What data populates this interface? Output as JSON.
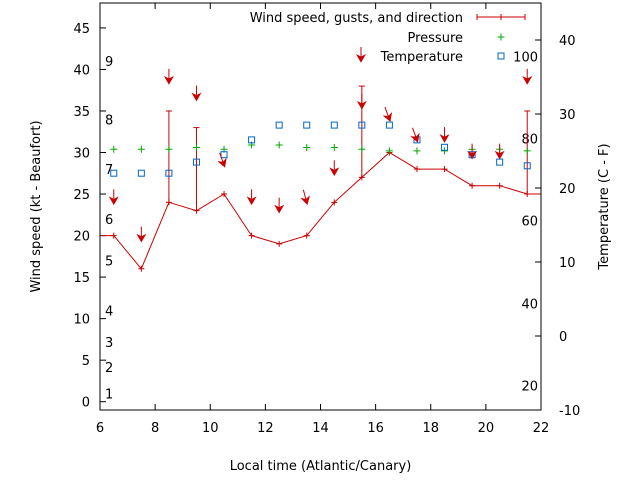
{
  "chart_data": {
    "type": "line",
    "title": "",
    "xlabel": "Local time (Atlantic/Canary)",
    "ylabel_left": "Wind speed (kt - Beaufort)",
    "ylabel_right": "Temperature (C - F)",
    "xlim": [
      6,
      22
    ],
    "ylim_left": [
      -1,
      48
    ],
    "ylim_right": [
      -10,
      45
    ],
    "x_ticks": [
      6,
      8,
      10,
      12,
      14,
      16,
      18,
      20,
      22
    ],
    "y_ticks_left": [
      0,
      5,
      10,
      15,
      20,
      25,
      30,
      35,
      40,
      45
    ],
    "y_ticks_right": [
      -10,
      0,
      10,
      20,
      30,
      40
    ],
    "beaufort_labels": [
      {
        "label": "1",
        "kt": 1
      },
      {
        "label": "2",
        "kt": 4.2
      },
      {
        "label": "3",
        "kt": 7.2
      },
      {
        "label": "4",
        "kt": 11
      },
      {
        "label": "5",
        "kt": 17
      },
      {
        "label": "6",
        "kt": 22
      },
      {
        "label": "7",
        "kt": 28
      },
      {
        "label": "8",
        "kt": 34
      },
      {
        "label": "9",
        "kt": 41
      }
    ],
    "fahrenheit_labels": [
      {
        "label": "20",
        "c": -6.7
      },
      {
        "label": "40",
        "c": 4.4
      },
      {
        "label": "60",
        "c": 15.6
      },
      {
        "label": "80",
        "c": 26.7
      },
      {
        "label": "100",
        "c": 37.8
      }
    ],
    "legend": {
      "position": "top-right",
      "entries": [
        "Wind speed, gusts, and direction",
        "Pressure",
        "Temperature"
      ]
    },
    "colors": {
      "wind": "#cc0000",
      "pressure": "#00aa00",
      "temperature": "#0066cc"
    },
    "wind": [
      {
        "x": 6.0,
        "speed": 20
      },
      {
        "x": 6.5,
        "speed": 20,
        "gust": 20,
        "dir": 0
      },
      {
        "x": 7.5,
        "speed": 16,
        "gust": 16,
        "dir": 0
      },
      {
        "x": 8.5,
        "speed": 24,
        "gust": 35,
        "dir": 0
      },
      {
        "x": 9.5,
        "speed": 23,
        "gust": 33,
        "dir": 0
      },
      {
        "x": 10.5,
        "speed": 25,
        "gust": 25,
        "dir": -20
      },
      {
        "x": 11.5,
        "speed": 20,
        "gust": 20,
        "dir": 0
      },
      {
        "x": 12.5,
        "speed": 19,
        "gust": 19,
        "dir": 0
      },
      {
        "x": 13.5,
        "speed": 20,
        "gust": 20,
        "dir": -15
      },
      {
        "x": 14.5,
        "speed": 24,
        "gust": 24,
        "dir": 0
      },
      {
        "x": 15.5,
        "speed": 27,
        "gust": 38,
        "dir": 0
      },
      {
        "x": 16.5,
        "speed": 30,
        "gust": 30,
        "dir": -20
      },
      {
        "x": 17.5,
        "speed": 28,
        "gust": 28,
        "dir": -20
      },
      {
        "x": 18.5,
        "speed": 28,
        "gust": 28,
        "dir": 0
      },
      {
        "x": 19.5,
        "speed": 26,
        "gust": 26,
        "dir": 0
      },
      {
        "x": 20.5,
        "speed": 26,
        "gust": 26,
        "dir": 0
      },
      {
        "x": 21.5,
        "speed": 25,
        "gust": 35,
        "dir": 0
      },
      {
        "x": 22.0,
        "speed": 25
      }
    ],
    "direction_arrow_kt": [
      {
        "x": 6.5,
        "kt": 24
      },
      {
        "x": 7.5,
        "kt": 19.5
      },
      {
        "x": 8.5,
        "kt": 38.5
      },
      {
        "x": 9.5,
        "kt": 36.5
      },
      {
        "x": 10.5,
        "kt": 28.5
      },
      {
        "x": 11.5,
        "kt": 24
      },
      {
        "x": 12.5,
        "kt": 23
      },
      {
        "x": 13.5,
        "kt": 24
      },
      {
        "x": 14.5,
        "kt": 27.5
      },
      {
        "x": 15.5,
        "kt": 35.5
      },
      {
        "x": 16.5,
        "kt": 34
      },
      {
        "x": 17.5,
        "kt": 31.5
      },
      {
        "x": 18.5,
        "kt": 31.5
      },
      {
        "x": 19.5,
        "kt": 29.5
      },
      {
        "x": 20.5,
        "kt": 29.5
      },
      {
        "x": 21.5,
        "kt": 38.5
      }
    ],
    "pressure": [
      {
        "x": 6.5,
        "kt": 30.4
      },
      {
        "x": 7.5,
        "kt": 30.4
      },
      {
        "x": 8.5,
        "kt": 30.4
      },
      {
        "x": 9.5,
        "kt": 30.6
      },
      {
        "x": 10.5,
        "kt": 30.4
      },
      {
        "x": 11.5,
        "kt": 30.9
      },
      {
        "x": 12.5,
        "kt": 30.9
      },
      {
        "x": 13.5,
        "kt": 30.6
      },
      {
        "x": 14.5,
        "kt": 30.6
      },
      {
        "x": 15.5,
        "kt": 30.4
      },
      {
        "x": 16.5,
        "kt": 30.2
      },
      {
        "x": 17.5,
        "kt": 30.2
      },
      {
        "x": 18.5,
        "kt": 30.2
      },
      {
        "x": 19.5,
        "kt": 30.4
      },
      {
        "x": 20.5,
        "kt": 30.4
      },
      {
        "x": 21.5,
        "kt": 30.2
      }
    ],
    "temperature_c": [
      {
        "x": 6.5,
        "c": 22
      },
      {
        "x": 7.5,
        "c": 22
      },
      {
        "x": 8.5,
        "c": 22
      },
      {
        "x": 9.5,
        "c": 23.5
      },
      {
        "x": 10.5,
        "c": 24.5
      },
      {
        "x": 11.5,
        "c": 26.5
      },
      {
        "x": 12.5,
        "c": 28.5
      },
      {
        "x": 13.5,
        "c": 28.5
      },
      {
        "x": 14.5,
        "c": 28.5
      },
      {
        "x": 15.5,
        "c": 28.5
      },
      {
        "x": 16.5,
        "c": 28.5
      },
      {
        "x": 17.5,
        "c": 26.5
      },
      {
        "x": 18.5,
        "c": 25.5
      },
      {
        "x": 19.5,
        "c": 24.5
      },
      {
        "x": 20.5,
        "c": 23.5
      },
      {
        "x": 21.5,
        "c": 23
      }
    ]
  }
}
